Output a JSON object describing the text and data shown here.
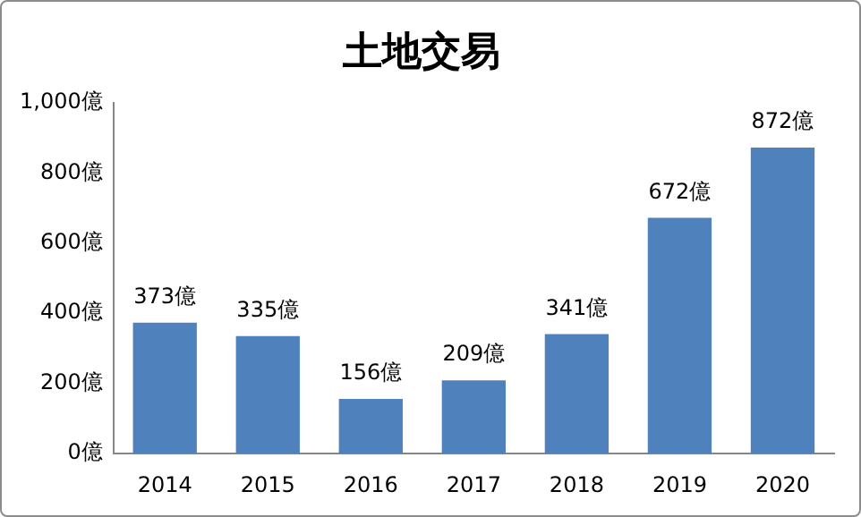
{
  "chart_data": {
    "type": "bar",
    "title": "土地交易",
    "categories": [
      "2014",
      "2015",
      "2016",
      "2017",
      "2018",
      "2019",
      "2020"
    ],
    "values": [
      373,
      335,
      156,
      209,
      341,
      672,
      872
    ],
    "value_labels": [
      "373億",
      "335億",
      "156億",
      "209億",
      "341億",
      "672億",
      "872億"
    ],
    "color": "#4f81bd",
    "ylim": [
      0,
      1000
    ],
    "yticks": [
      {
        "value": 0,
        "label": "0億"
      },
      {
        "value": 200,
        "label": "200億"
      },
      {
        "value": 400,
        "label": "400億"
      },
      {
        "value": 600,
        "label": "600億"
      },
      {
        "value": 800,
        "label": "800億"
      },
      {
        "value": 1000,
        "label": "1,000億"
      }
    ],
    "grid": false,
    "legend": false
  }
}
